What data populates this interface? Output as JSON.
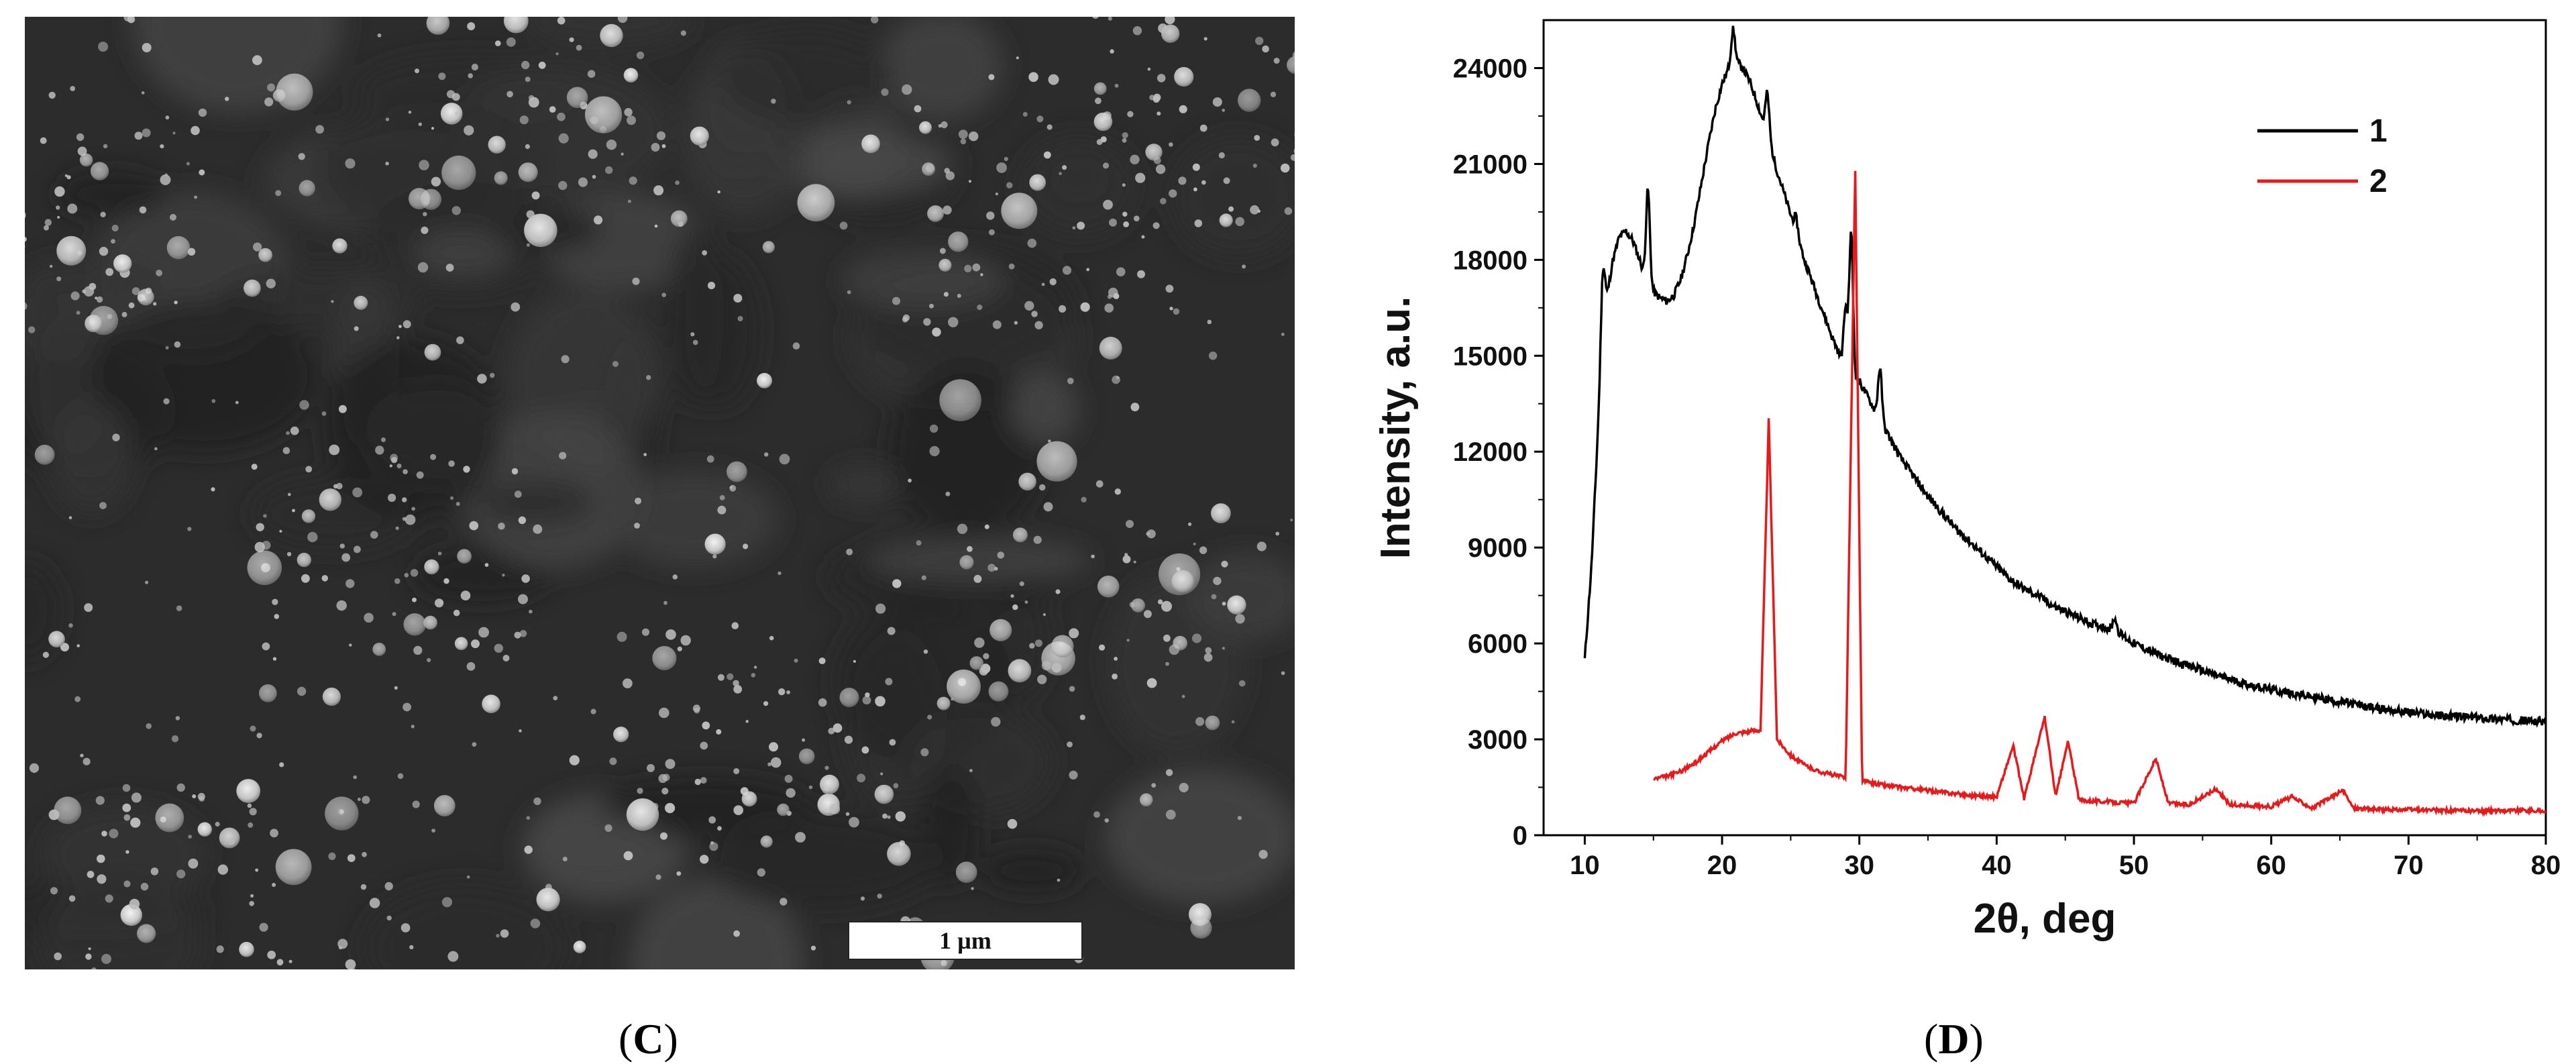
{
  "panel_c": {
    "label": "C",
    "scale_bar": "1 µm"
  },
  "panel_d": {
    "label": "D"
  },
  "chart_data": {
    "type": "line",
    "xlabel": "2θ, deg",
    "ylabel": "Intensity, a.u.",
    "xlim": [
      7,
      80
    ],
    "ylim": [
      0,
      25500
    ],
    "xticks": [
      10,
      20,
      30,
      40,
      50,
      60,
      70,
      80
    ],
    "yticks": [
      0,
      3000,
      6000,
      9000,
      12000,
      15000,
      18000,
      21000,
      24000
    ],
    "legend_position": "top-right",
    "grid": false,
    "series": [
      {
        "name": "1",
        "color": "#000000",
        "points": [
          [
            10,
            5500
          ],
          [
            10.5,
            8500
          ],
          [
            11,
            13000
          ],
          [
            11.5,
            16500
          ],
          [
            12,
            17900
          ],
          [
            12.5,
            18700
          ],
          [
            13,
            18900
          ],
          [
            13.5,
            18600
          ],
          [
            14,
            18000
          ],
          [
            14.5,
            17300
          ],
          [
            15,
            17000
          ],
          [
            15.5,
            16800
          ],
          [
            16,
            16700
          ],
          [
            16.5,
            16900
          ],
          [
            17,
            17400
          ],
          [
            17.5,
            18200
          ],
          [
            18,
            19200
          ],
          [
            18.5,
            20400
          ],
          [
            19,
            21600
          ],
          [
            19.5,
            22700
          ],
          [
            20,
            23500
          ],
          [
            20.5,
            24000
          ],
          [
            21,
            24200
          ],
          [
            21.5,
            24000
          ],
          [
            22,
            23600
          ],
          [
            22.5,
            23000
          ],
          [
            23,
            22300
          ],
          [
            23.5,
            21600
          ],
          [
            24,
            20800
          ],
          [
            24.5,
            20100
          ],
          [
            25,
            19400
          ],
          [
            25.5,
            18700
          ],
          [
            26,
            18000
          ],
          [
            26.5,
            17400
          ],
          [
            27,
            16800
          ],
          [
            27.5,
            16200
          ],
          [
            28,
            15600
          ],
          [
            28.5,
            15100
          ],
          [
            29,
            14500
          ],
          [
            29.5,
            14300
          ],
          [
            30,
            14200
          ],
          [
            31,
            13400
          ],
          [
            32,
            12600
          ],
          [
            33,
            11800
          ],
          [
            34,
            11200
          ],
          [
            35,
            10600
          ],
          [
            36,
            10100
          ],
          [
            37,
            9600
          ],
          [
            38,
            9200
          ],
          [
            39,
            8800
          ],
          [
            40,
            8400
          ],
          [
            41,
            8000
          ],
          [
            42,
            7700
          ],
          [
            43,
            7500
          ],
          [
            44,
            7200
          ],
          [
            45,
            7000
          ],
          [
            46,
            6800
          ],
          [
            47,
            6600
          ],
          [
            48,
            6500
          ],
          [
            49,
            6300
          ],
          [
            50,
            6000
          ],
          [
            52,
            5600
          ],
          [
            54,
            5300
          ],
          [
            56,
            5000
          ],
          [
            58,
            4750
          ],
          [
            60,
            4550
          ],
          [
            62,
            4400
          ],
          [
            64,
            4250
          ],
          [
            66,
            4100
          ],
          [
            68,
            3950
          ],
          [
            70,
            3850
          ],
          [
            72,
            3750
          ],
          [
            74,
            3700
          ],
          [
            76,
            3650
          ],
          [
            78,
            3600
          ],
          [
            80,
            3550
          ]
        ],
        "peaks": [
          [
            11.3,
            17600
          ],
          [
            14.6,
            20200
          ],
          [
            20.8,
            25200
          ],
          [
            23.3,
            23200
          ],
          [
            25.4,
            19300
          ],
          [
            29.0,
            16500
          ],
          [
            29.4,
            18800
          ],
          [
            31.5,
            14600
          ],
          [
            48.6,
            6800
          ]
        ]
      },
      {
        "name": "2",
        "color": "#e8191a",
        "points": [
          [
            15,
            1750
          ],
          [
            16,
            1850
          ],
          [
            17,
            2000
          ],
          [
            18,
            2250
          ],
          [
            19,
            2600
          ],
          [
            20,
            2950
          ],
          [
            21,
            3200
          ],
          [
            22,
            3250
          ],
          [
            22.8,
            3300
          ],
          [
            23.4,
            13000
          ],
          [
            24,
            3000
          ],
          [
            25,
            2500
          ],
          [
            26,
            2200
          ],
          [
            27,
            2000
          ],
          [
            28,
            1900
          ],
          [
            29,
            1800
          ],
          [
            29.7,
            20800
          ],
          [
            30.2,
            1700
          ],
          [
            32,
            1550
          ],
          [
            34,
            1450
          ],
          [
            36,
            1350
          ],
          [
            38,
            1250
          ],
          [
            40,
            1200
          ],
          [
            41.2,
            2800
          ],
          [
            42,
            1150
          ],
          [
            43.5,
            3700
          ],
          [
            44.3,
            1200
          ],
          [
            45.2,
            2950
          ],
          [
            46,
            1100
          ],
          [
            48,
            1050
          ],
          [
            50,
            1000
          ],
          [
            51.6,
            2400
          ],
          [
            52.5,
            1000
          ],
          [
            54,
            950
          ],
          [
            56,
            1450
          ],
          [
            57,
            950
          ],
          [
            60,
            900
          ],
          [
            61.5,
            1200
          ],
          [
            63,
            850
          ],
          [
            65.2,
            1400
          ],
          [
            66,
            850
          ],
          [
            68,
            800
          ],
          [
            70,
            800
          ],
          [
            72,
            780
          ],
          [
            75,
            760
          ],
          [
            78,
            780
          ],
          [
            80,
            750
          ]
        ]
      }
    ]
  }
}
